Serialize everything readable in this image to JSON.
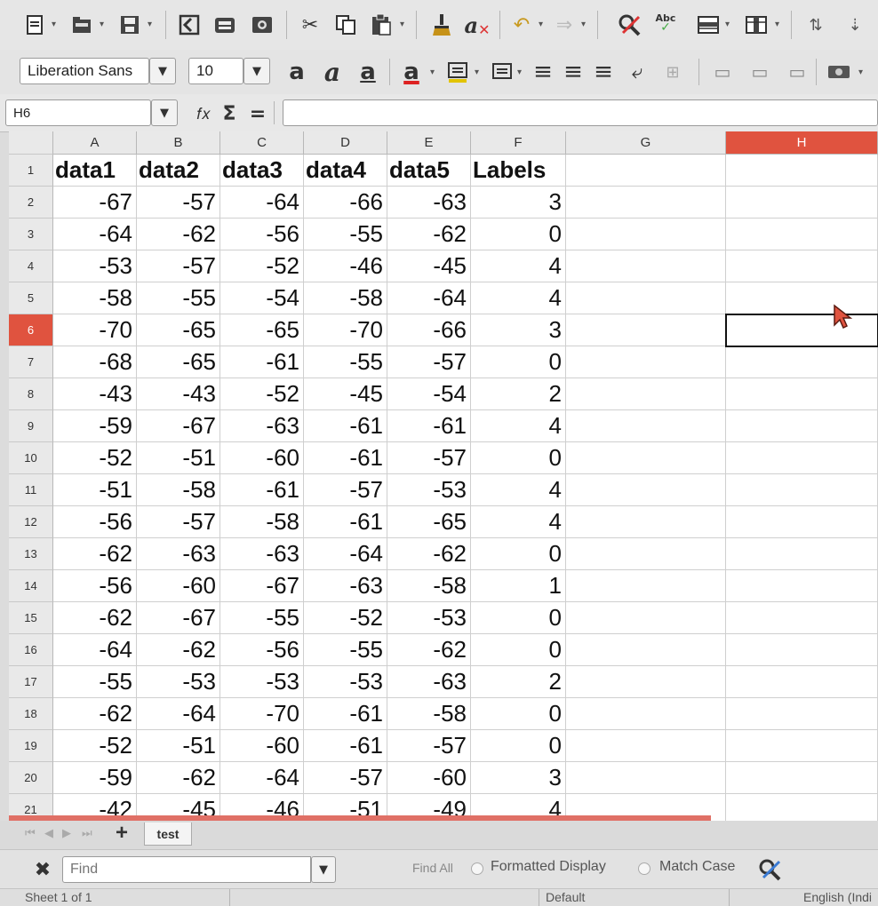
{
  "toolbar1": {
    "icons": [
      "new-icon",
      "open-icon",
      "save-icon",
      "export-pdf-icon",
      "print-icon",
      "print-preview-icon",
      "cut-icon",
      "copy-icon",
      "paste-icon",
      "clone-format-icon",
      "clear-format-icon",
      "undo-icon",
      "redo-icon",
      "spelling-icon",
      "autospell-icon",
      "row-icon",
      "column-icon",
      "sort-asc-icon",
      "sort-desc-icon"
    ]
  },
  "toolbar2": {
    "font_name": "Liberation Sans",
    "font_size": "10",
    "bold": "a",
    "italic": "a",
    "underline": "a",
    "font_color": "a"
  },
  "formula_bar": {
    "name_box": "H6",
    "function_symbol": "Σ",
    "equals_symbol": "=",
    "input_value": ""
  },
  "grid": {
    "columns": [
      {
        "label": "A",
        "w": 94
      },
      {
        "label": "B",
        "w": 94
      },
      {
        "label": "C",
        "w": 94
      },
      {
        "label": "D",
        "w": 94
      },
      {
        "label": "E",
        "w": 94
      },
      {
        "label": "F",
        "w": 107
      },
      {
        "label": "G",
        "w": 180
      },
      {
        "label": "H",
        "w": 171
      }
    ],
    "selected_column": "H",
    "selected_row": "6",
    "header_row": [
      "data1",
      "data2",
      "data3",
      "data4",
      "data5",
      "Labels"
    ],
    "rows": [
      [
        "-67",
        "-57",
        "-64",
        "-66",
        "-63",
        "3"
      ],
      [
        "-64",
        "-62",
        "-56",
        "-55",
        "-62",
        "0"
      ],
      [
        "-53",
        "-57",
        "-52",
        "-46",
        "-45",
        "4"
      ],
      [
        "-58",
        "-55",
        "-54",
        "-58",
        "-64",
        "4"
      ],
      [
        "-70",
        "-65",
        "-65",
        "-70",
        "-66",
        "3"
      ],
      [
        "-68",
        "-65",
        "-61",
        "-55",
        "-57",
        "0"
      ],
      [
        "-43",
        "-43",
        "-52",
        "-45",
        "-54",
        "2"
      ],
      [
        "-59",
        "-67",
        "-63",
        "-61",
        "-61",
        "4"
      ],
      [
        "-52",
        "-51",
        "-60",
        "-61",
        "-57",
        "0"
      ],
      [
        "-51",
        "-58",
        "-61",
        "-57",
        "-53",
        "4"
      ],
      [
        "-56",
        "-57",
        "-58",
        "-61",
        "-65",
        "4"
      ],
      [
        "-62",
        "-63",
        "-63",
        "-64",
        "-62",
        "0"
      ],
      [
        "-56",
        "-60",
        "-67",
        "-63",
        "-58",
        "1"
      ],
      [
        "-62",
        "-67",
        "-55",
        "-52",
        "-53",
        "0"
      ],
      [
        "-64",
        "-62",
        "-56",
        "-55",
        "-62",
        "0"
      ],
      [
        "-55",
        "-53",
        "-53",
        "-53",
        "-63",
        "2"
      ],
      [
        "-62",
        "-64",
        "-70",
        "-61",
        "-58",
        "0"
      ],
      [
        "-52",
        "-51",
        "-60",
        "-61",
        "-57",
        "0"
      ],
      [
        "-59",
        "-62",
        "-64",
        "-57",
        "-60",
        "3"
      ],
      [
        "-42",
        "-45",
        "-46",
        "-51",
        "-49",
        "4"
      ]
    ]
  },
  "sheet_tabs": {
    "add_symbol": "+",
    "tabs": [
      "test"
    ]
  },
  "find_toolbar": {
    "placeholder": "Find",
    "find_all": "Find All",
    "formatted_display": "Formatted Display",
    "match_case": "Match Case"
  },
  "status_bar": {
    "sheet": "Sheet 1 of 1",
    "page_style": "Default",
    "language": "English (Indi"
  },
  "colors": {
    "selection_accent": "#e0533f"
  }
}
